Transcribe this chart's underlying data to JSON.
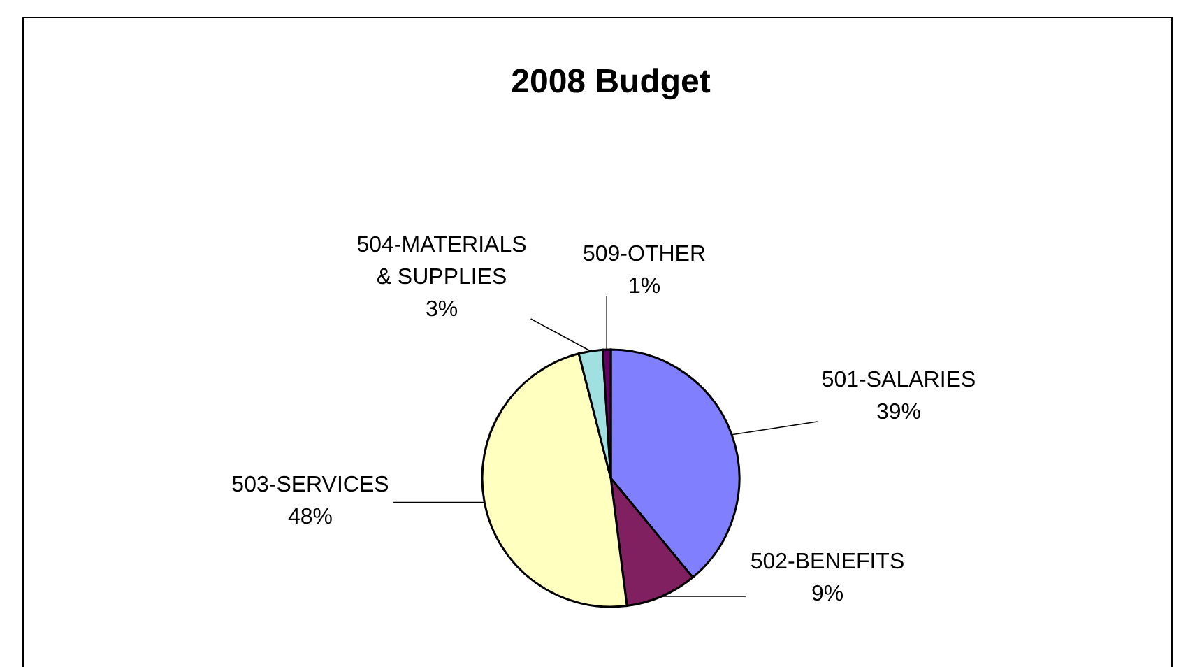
{
  "chart_data": {
    "type": "pie",
    "title": "2008 Budget",
    "categories": [
      "501-SALARIES",
      "502-BENEFITS",
      "503-SERVICES",
      "504-MATERIALS & SUPPLIES",
      "509-OTHER"
    ],
    "values": [
      39,
      9,
      48,
      3,
      1
    ],
    "colors": [
      "#8080ff",
      "#802060",
      "#ffffc0",
      "#a0e0e0",
      "#660066"
    ],
    "value_labels": [
      "39%",
      "9%",
      "48%",
      "3%",
      "1%"
    ],
    "legend": false
  }
}
